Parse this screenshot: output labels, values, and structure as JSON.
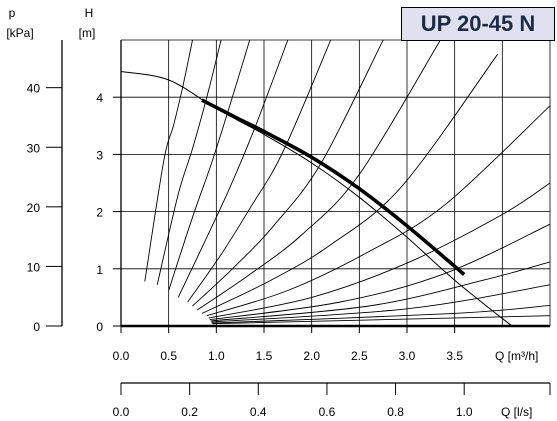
{
  "chart_data": {
    "type": "line",
    "title": "UP 20-45 N",
    "left_axes": [
      {
        "label_top": "p",
        "label_unit": "[kPa]",
        "range": [
          0,
          48
        ],
        "ticks": [
          0,
          10,
          20,
          30,
          40
        ],
        "tick_labels": [
          "0",
          "10",
          "20",
          "30",
          "40"
        ]
      },
      {
        "label_top": "H",
        "label_unit": "[m]",
        "range": [
          0,
          5.0
        ],
        "ticks": [
          0,
          1,
          2,
          3,
          4
        ],
        "tick_labels": [
          "0",
          "1",
          "2",
          "3",
          "4"
        ]
      }
    ],
    "bottom_axes": [
      {
        "label": "Q [m³/h]",
        "range": [
          0,
          4.5
        ],
        "ticks": [
          0,
          0.5,
          1,
          1.5,
          2,
          2.5,
          3,
          3.5
        ],
        "tick_labels": [
          "0.0",
          "0.5",
          "1.0",
          "1.5",
          "2.0",
          "2.5",
          "3.0",
          "3.5"
        ]
      },
      {
        "label": "Q [l/s]",
        "range": [
          0,
          1.25
        ],
        "ticks": [
          0,
          0.2,
          0.4,
          0.6,
          0.8,
          1.0
        ],
        "tick_labels": [
          "0.0",
          "0.2",
          "0.4",
          "0.6",
          "0.8",
          "1.0"
        ]
      }
    ],
    "grid": true,
    "series": [
      {
        "role": "pump-curve-thin",
        "x": [
          0,
          0.5,
          1.0,
          1.5,
          2.0,
          2.5,
          3.0,
          3.5,
          4.1
        ],
        "y": [
          4.45,
          4.3,
          3.8,
          3.35,
          2.85,
          2.25,
          1.55,
          0.8,
          0
        ]
      },
      {
        "role": "operating-range-bold",
        "x": [
          0.85,
          1.2,
          1.5,
          2.0,
          2.5,
          3.0,
          3.6
        ],
        "y": [
          3.95,
          3.65,
          3.4,
          2.95,
          2.4,
          1.75,
          0.9
        ]
      }
    ],
    "system_curves": [
      {
        "x": [
          0.25,
          0.45,
          0.55,
          0.65,
          0.75
        ],
        "y": [
          0.78,
          2.9,
          3.5,
          4.2,
          5.0
        ]
      },
      {
        "x": [
          0.38,
          0.6,
          0.75,
          0.9,
          1.05
        ],
        "y": [
          0.72,
          2.3,
          3.1,
          4.0,
          5.0
        ]
      },
      {
        "x": [
          0.5,
          0.75,
          0.95,
          1.15,
          1.35
        ],
        "y": [
          0.62,
          1.9,
          2.85,
          3.9,
          5.0
        ]
      },
      {
        "x": [
          0.6,
          0.9,
          1.15,
          1.4,
          1.75
        ],
        "y": [
          0.5,
          1.55,
          2.45,
          3.45,
          5.0
        ]
      },
      {
        "x": [
          0.7,
          1.05,
          1.35,
          1.7,
          2.2
        ],
        "y": [
          0.42,
          1.25,
          2.05,
          3.05,
          5.0
        ]
      },
      {
        "x": [
          0.75,
          1.2,
          1.6,
          2.1,
          2.75
        ],
        "y": [
          0.35,
          1.05,
          1.75,
          2.85,
          5.0
        ]
      },
      {
        "x": [
          0.8,
          1.35,
          1.9,
          2.5,
          3.35
        ],
        "y": [
          0.28,
          0.9,
          1.6,
          2.65,
          5.0
        ]
      },
      {
        "x": [
          0.85,
          1.55,
          2.2,
          2.95,
          3.95
        ],
        "y": [
          0.22,
          0.78,
          1.42,
          2.45,
          4.75
        ]
      },
      {
        "x": [
          0.9,
          1.75,
          2.6,
          3.4,
          4.5
        ],
        "y": [
          0.18,
          0.62,
          1.3,
          2.12,
          3.85
        ]
      },
      {
        "x": [
          0.92,
          2.0,
          3.0,
          4.0,
          4.5
        ],
        "y": [
          0.14,
          0.5,
          1.1,
          1.95,
          2.5
        ]
      },
      {
        "x": [
          0.93,
          2.3,
          3.4,
          4.5
        ],
        "y": [
          0.11,
          0.42,
          0.92,
          1.78
        ]
      },
      {
        "x": [
          0.94,
          2.6,
          3.8,
          4.5
        ],
        "y": [
          0.09,
          0.35,
          0.8,
          1.12
        ]
      },
      {
        "x": [
          0.95,
          3.0,
          4.5
        ],
        "y": [
          0.07,
          0.3,
          0.72
        ]
      },
      {
        "x": [
          0.95,
          3.5,
          4.5
        ],
        "y": [
          0.05,
          0.22,
          0.36
        ]
      },
      {
        "x": [
          0.96,
          4.5
        ],
        "y": [
          0.04,
          0.18
        ]
      }
    ]
  }
}
